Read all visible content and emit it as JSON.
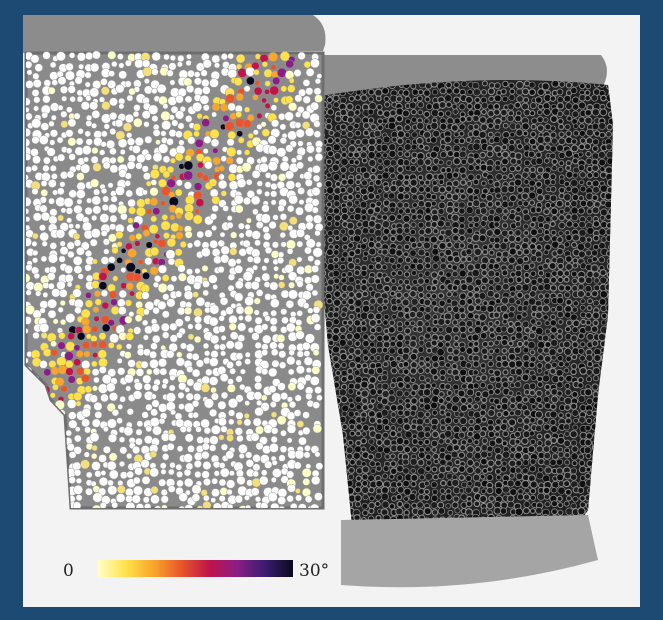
{
  "colorbar": {
    "min_label": "0",
    "max_label": "30°",
    "colors": [
      "#ffffc8",
      "#ffe24a",
      "#f8a52a",
      "#e8552c",
      "#c0144a",
      "#8a1e86",
      "#3a1c6e",
      "#0a0a1e"
    ]
  },
  "colors": {
    "frame": "#1d4a73",
    "panel_background": "#f3f3f3",
    "granular_background": "#8a8a8a",
    "foam_dark": "#2b2b2b",
    "foam_light": "#9c9c9c"
  }
}
